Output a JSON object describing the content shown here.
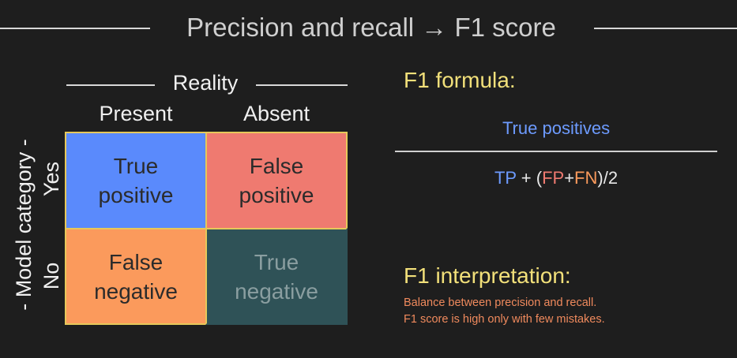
{
  "title": "Precision and recall → F1 score",
  "matrix": {
    "column_group_label": "Reality",
    "columns": [
      "Present",
      "Absent"
    ],
    "row_group_label": "- Model category -",
    "rows": [
      "Yes",
      "No"
    ],
    "cells": {
      "tp": {
        "line1": "True",
        "line2": "positive"
      },
      "fp": {
        "line1": "False",
        "line2": "positive"
      },
      "fn": {
        "line1": "False",
        "line2": "negative"
      },
      "tn": {
        "line1": "True",
        "line2": "negative"
      }
    }
  },
  "formula": {
    "title": "F1 formula:",
    "numerator": "True positives",
    "denominator": {
      "tp": "TP",
      "plus_open": " + (",
      "fp": "FP",
      "plus": "+",
      "fn": "FN",
      "close": ")/2"
    }
  },
  "interpretation": {
    "title": "F1 interpretation:",
    "lines": [
      "Balance between precision and recall.",
      "F1 score is high only with few mistakes."
    ]
  },
  "colors": {
    "background": "#1e1e1e",
    "true_positive": "#5a8afc",
    "false_positive": "#ef7a70",
    "false_negative": "#fb9a5c",
    "true_negative": "#2f5257",
    "grid_border": "#e6c85a",
    "heading_yellow": "#f2e07a",
    "interpretation_orange": "#f08a5d"
  }
}
